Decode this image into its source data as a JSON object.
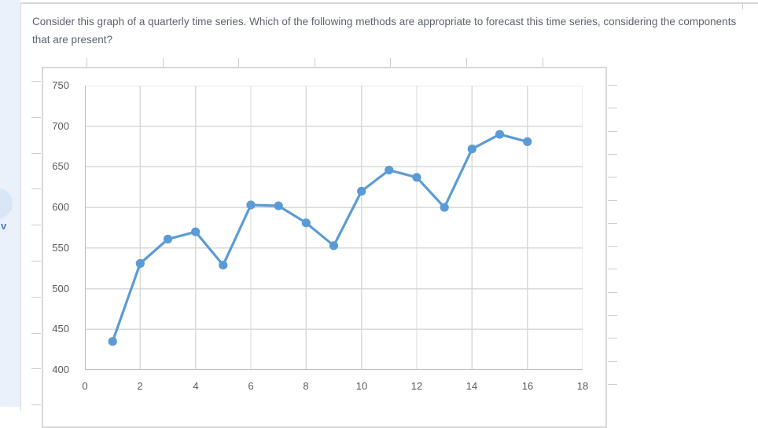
{
  "sidebar": {
    "chevron_label": "v"
  },
  "question": {
    "text": "Consider this graph of a quarterly time series. Which of the following methods are appropriate to forecast this time series, considering the components that are present?"
  },
  "colors": {
    "line_blue": "#5B9BD5",
    "grid": "#D9D9D9",
    "axis_line": "#BFBFBF",
    "frame_border": "#D9D9D9",
    "outer_tick": "#CCCCCC",
    "axis_text": "#595959",
    "question_text": "#5C6370",
    "sidebar_bg": "#EBF1FB",
    "sidebar_circle": "#D9E6F7",
    "chevron_blue": "#4A7CC2"
  },
  "chart_data": {
    "type": "line",
    "title": "",
    "xlabel": "",
    "ylabel": "",
    "x": [
      1,
      2,
      3,
      4,
      5,
      6,
      7,
      8,
      9,
      10,
      11,
      12,
      13,
      14,
      15,
      16
    ],
    "values": [
      435,
      531,
      561,
      570,
      529,
      603,
      602,
      581,
      553,
      620,
      646,
      637,
      600,
      672,
      690,
      681
    ],
    "x_ticks": [
      0,
      2,
      4,
      6,
      8,
      10,
      12,
      14,
      16,
      18
    ],
    "y_ticks": [
      400,
      450,
      500,
      550,
      600,
      650,
      700,
      750
    ],
    "xlim": [
      0,
      18
    ],
    "ylim": [
      400,
      750
    ],
    "grid": true,
    "legend": false,
    "marker": "circle",
    "series_name": "quarterly time series"
  }
}
